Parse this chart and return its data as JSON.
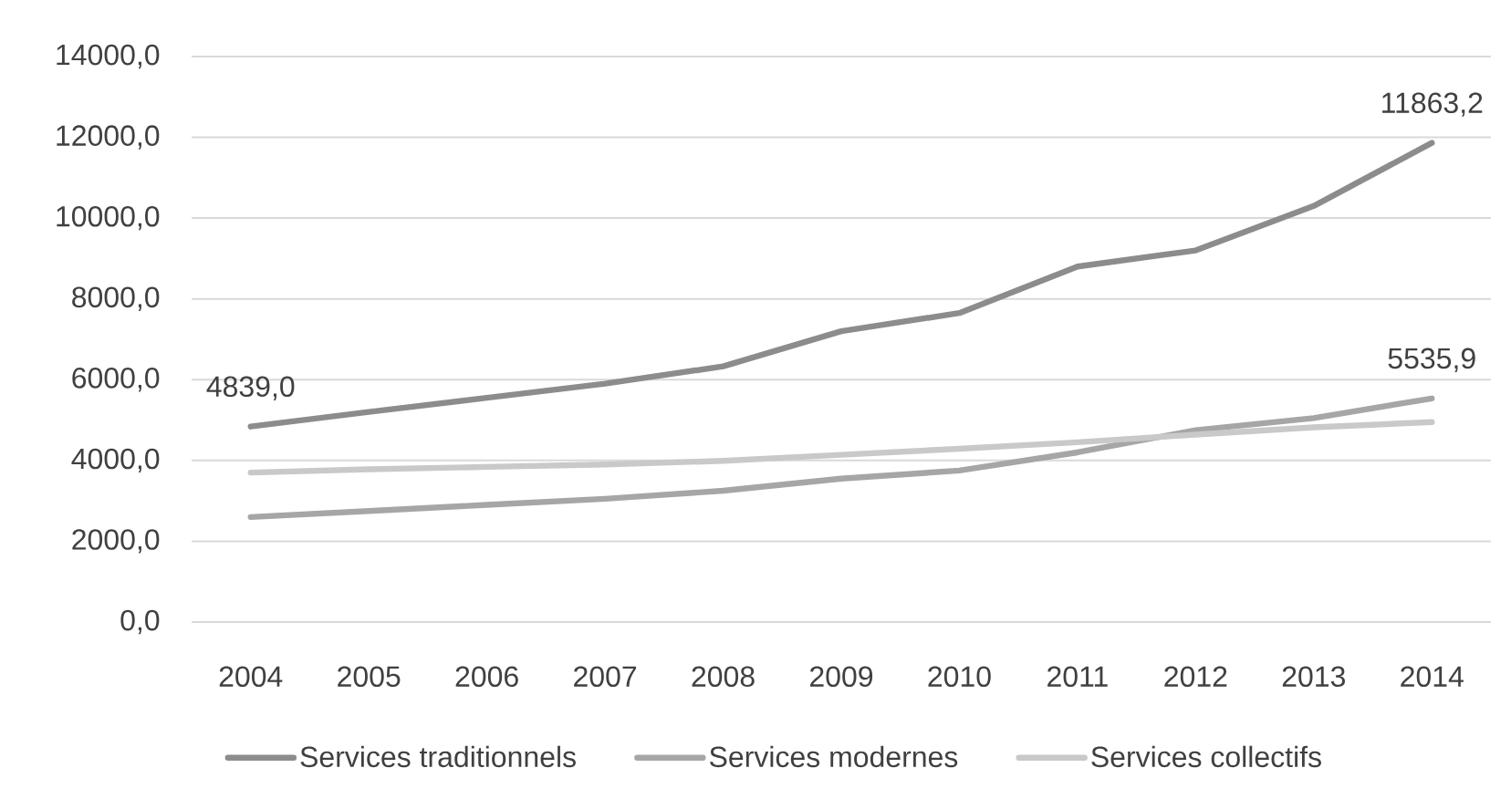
{
  "chart_data": {
    "type": "line",
    "categories": [
      "2004",
      "2005",
      "2006",
      "2007",
      "2008",
      "2009",
      "2010",
      "2011",
      "2012",
      "2013",
      "2014"
    ],
    "series": [
      {
        "name": "Services traditionnels",
        "color": "#8c8c8c",
        "values": [
          4839.0,
          5200,
          5550,
          5900,
          6330,
          7200,
          7650,
          8800,
          9200,
          10300,
          11863.2
        ],
        "value_labels": [
          "4839,0",
          null,
          null,
          null,
          null,
          null,
          null,
          null,
          null,
          null,
          "11863,2"
        ]
      },
      {
        "name": "Services modernes",
        "color": "#a6a6a6",
        "values": [
          2600,
          2750,
          2900,
          3050,
          3250,
          3550,
          3750,
          4200,
          4750,
          5050,
          5535.9
        ],
        "value_labels": [
          null,
          null,
          null,
          null,
          null,
          null,
          null,
          null,
          null,
          null,
          "5535,9"
        ]
      },
      {
        "name": "Services collectifs",
        "color": "#c9c9c9",
        "values": [
          3700,
          3780,
          3840,
          3900,
          3990,
          4140,
          4290,
          4450,
          4640,
          4820,
          4950
        ]
      }
    ],
    "ylim": [
      0,
      14000
    ],
    "yticks": [
      {
        "value": 0,
        "label": "0,0"
      },
      {
        "value": 2000,
        "label": "2000,0"
      },
      {
        "value": 4000,
        "label": "4000,0"
      },
      {
        "value": 6000,
        "label": "6000,0"
      },
      {
        "value": 8000,
        "label": "8000,0"
      },
      {
        "value": 10000,
        "label": "10000,0"
      },
      {
        "value": 12000,
        "label": "12000,0"
      },
      {
        "value": 14000,
        "label": "14000,0"
      }
    ],
    "grid": "y",
    "legend": "bottom"
  }
}
